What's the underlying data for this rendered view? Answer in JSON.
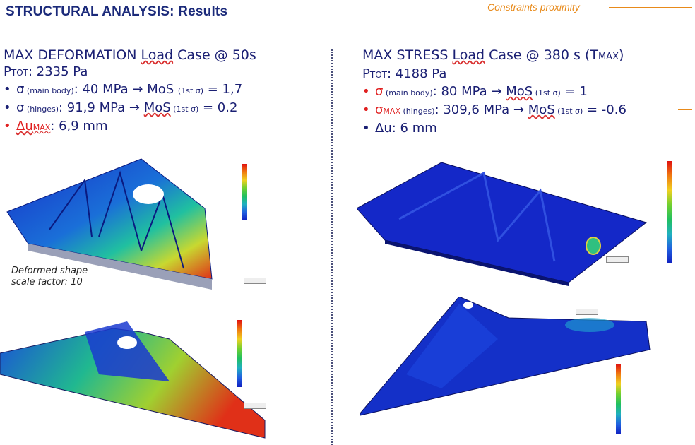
{
  "header": {
    "title": "STRUCTURAL ANALYSIS: Results",
    "constraints_label": "Constraints proximity"
  },
  "left": {
    "heading_prefix": "MAX DEFORMATION ",
    "heading_underlined": "Load",
    "heading_suffix": " Case @ 50s",
    "ptot_p": "P",
    "ptot_sub": "TOT",
    "ptot_value": ": 2335 Pa",
    "b1_sym": "σ",
    "b1_small": " (main body)",
    "b1_mid": ": 40 MPa → MoS ",
    "b1_small2": "(1st σ)",
    "b1_end": " = 1,7",
    "b2_sym": "σ",
    "b2_small": " (hinges)",
    "b2_mid": ": 91,9 MPa → ",
    "b2_mos": "MoS",
    "b2_small2": " (1st σ)",
    "b2_end": " = 0.2",
    "b3_sym": "Δu",
    "b3_small": "MAX",
    "b3_end": ":  6,9 mm",
    "caption": "Deformed shape\nscale factor: 10"
  },
  "right": {
    "heading_prefix": "MAX STRESS ",
    "heading_underlined": "Load",
    "heading_suffix": " Case @ 380 s (T",
    "heading_small": "MAX",
    "heading_close": ")",
    "ptot_p": "P",
    "ptot_sub": "TOT",
    "ptot_value": ": 4188 Pa",
    "b1_sym": "σ",
    "b1_small": " (main body)",
    "b1_mid": ": 80 MPa → ",
    "b1_mos": "MoS",
    "b1_small2": " (1st σ)",
    "b1_end": " = 1",
    "b2_sym": "σ",
    "b2_small": "MAX",
    "b2_small_b": " (hinges)",
    "b2_mid": ": 309,6 MPa → ",
    "b2_mos": "MoS",
    "b2_small2": " (1st σ)",
    "b2_end": " = -0.6",
    "b3_sym": "Δu:",
    "b3_end": "  6 mm"
  },
  "colors": {
    "navy": "#1a1f73",
    "red": "#e02020",
    "orange": "#e88a1a"
  }
}
